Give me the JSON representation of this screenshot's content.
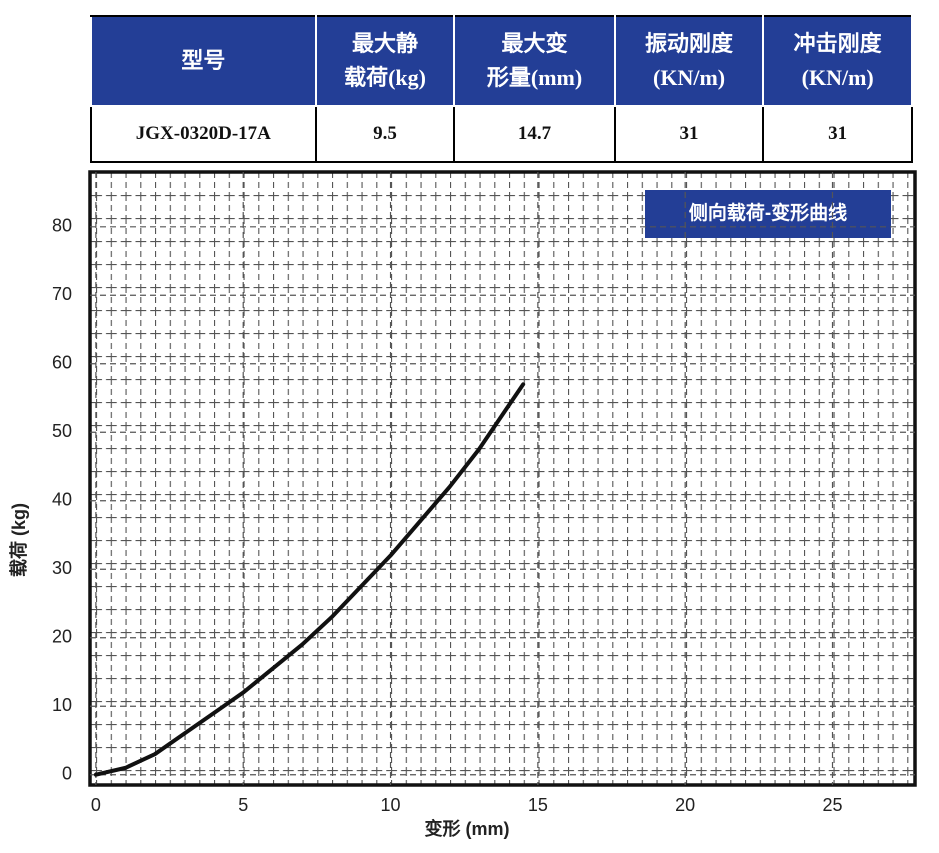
{
  "table": {
    "headers": [
      "型号",
      "最大静\n载荷(kg)",
      "最大变\n形量(mm)",
      "振动刚度\n(KN/m)",
      "冲击刚度\n(KN/m)"
    ],
    "rows": [
      [
        "JGX-0320D-17A",
        "9.5",
        "14.7",
        "31",
        "31"
      ]
    ]
  },
  "chart_data": {
    "type": "line",
    "title": "侧向载荷-变形曲线",
    "x_label": "变形 (mm)",
    "y_label": "载荷 (kg)",
    "x": [
      0,
      1,
      2,
      3,
      4,
      5,
      6,
      7,
      8,
      9,
      10,
      11,
      12,
      13,
      14.5
    ],
    "series": [
      {
        "name": "载荷",
        "color": "#111111",
        "values": [
          0,
          1,
          3,
          6,
          9,
          12,
          15.5,
          19,
          23,
          27.5,
          32,
          37,
          42,
          47.5,
          57
        ]
      }
    ],
    "xlim": [
      -0.2,
      27.8
    ],
    "ylim": [
      -1.5,
      88
    ],
    "xticks": [
      0,
      5,
      10,
      15,
      20,
      25
    ],
    "yticks": [
      0,
      10,
      20,
      30,
      40,
      50,
      60,
      70,
      80
    ],
    "grid": true
  }
}
